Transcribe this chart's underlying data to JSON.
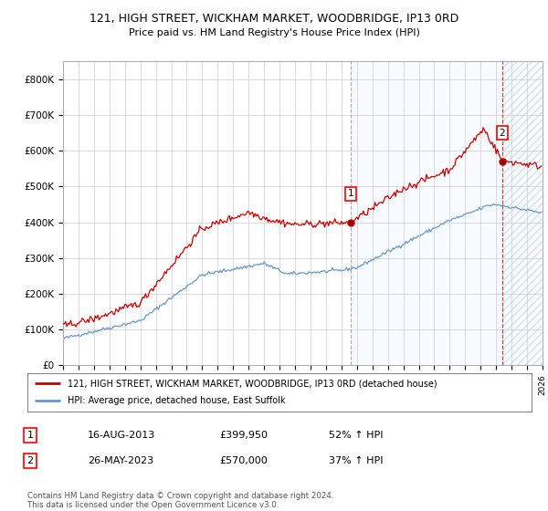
{
  "title1": "121, HIGH STREET, WICKHAM MARKET, WOODBRIDGE, IP13 0RD",
  "title2": "Price paid vs. HM Land Registry's House Price Index (HPI)",
  "legend_line1": "121, HIGH STREET, WICKHAM MARKET, WOODBRIDGE, IP13 0RD (detached house)",
  "legend_line2": "HPI: Average price, detached house, East Suffolk",
  "footnote": "Contains HM Land Registry data © Crown copyright and database right 2024.\nThis data is licensed under the Open Government Licence v3.0.",
  "sale1_date": "16-AUG-2013",
  "sale1_price": "£399,950",
  "sale1_hpi": "52% ↑ HPI",
  "sale1_year": 2013.62,
  "sale1_value": 399950,
  "sale2_date": "26-MAY-2023",
  "sale2_price": "£570,000",
  "sale2_hpi": "37% ↑ HPI",
  "sale2_year": 2023.4,
  "sale2_value": 570000,
  "red_color": "#cc0000",
  "blue_color": "#6699cc",
  "blue_fill_color": "#ddeeff",
  "background_color": "#ffffff",
  "grid_color": "#cccccc",
  "ylim": [
    0,
    850000
  ],
  "xlim_start": 1995.0,
  "xlim_end": 2026.0
}
